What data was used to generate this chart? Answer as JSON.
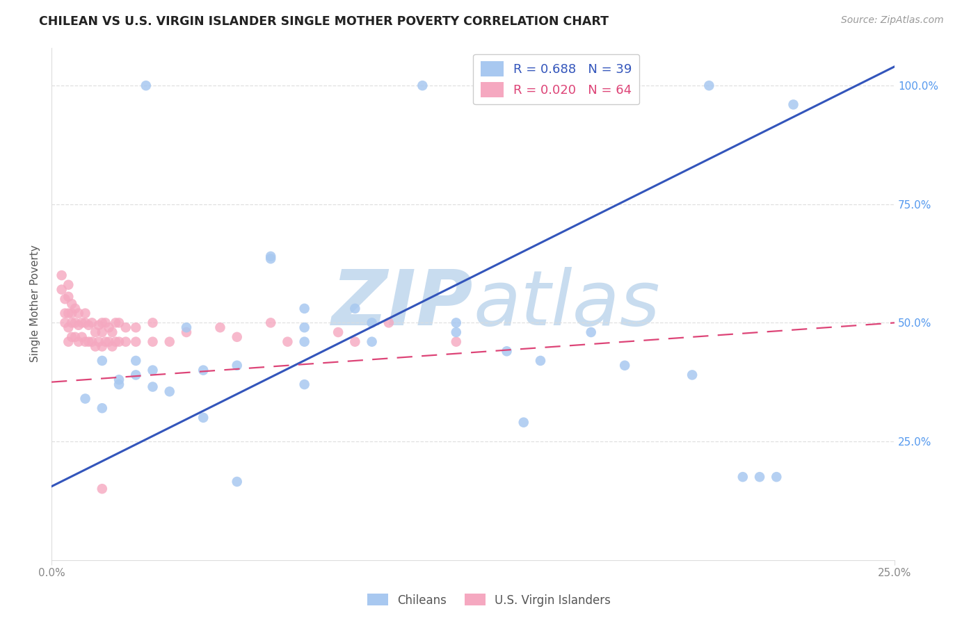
{
  "title": "CHILEAN VS U.S. VIRGIN ISLANDER SINGLE MOTHER POVERTY CORRELATION CHART",
  "source": "Source: ZipAtlas.com",
  "ylabel": "Single Mother Poverty",
  "xlim": [
    0.0,
    0.25
  ],
  "ylim": [
    0.0,
    1.08
  ],
  "ytick_vals": [
    0.25,
    0.5,
    0.75,
    1.0
  ],
  "xtick_vals": [
    0.0,
    0.25
  ],
  "legend_label_chileans": "Chileans",
  "legend_label_vi": "U.S. Virgin Islanders",
  "blue_color": "#A8C8F0",
  "pink_color": "#F5A8C0",
  "blue_line_color": "#3355BB",
  "pink_line_color": "#DD4477",
  "watermark_zip": "ZIP",
  "watermark_atlas": "atlas",
  "watermark_color": "#C8DCEF",
  "title_color": "#222222",
  "source_color": "#999999",
  "tick_color_right": "#5599EE",
  "tick_color_bottom": "#888888",
  "grid_color": "#DDDDDD",
  "blue_line_x": [
    0.0,
    0.25
  ],
  "blue_line_y": [
    0.155,
    1.04
  ],
  "pink_line_x": [
    0.0,
    0.25
  ],
  "pink_line_y": [
    0.375,
    0.5
  ],
  "chilean_x": [
    0.028,
    0.11,
    0.195,
    0.065,
    0.09,
    0.075,
    0.095,
    0.12,
    0.04,
    0.075,
    0.12,
    0.16,
    0.095,
    0.075,
    0.135,
    0.17,
    0.19,
    0.145,
    0.075,
    0.045,
    0.055,
    0.025,
    0.03,
    0.015,
    0.025,
    0.02,
    0.02,
    0.03,
    0.035,
    0.01,
    0.015,
    0.045,
    0.055,
    0.14,
    0.22,
    0.215,
    0.21,
    0.205,
    0.065
  ],
  "chilean_y": [
    1.0,
    1.0,
    1.0,
    0.64,
    0.53,
    0.53,
    0.5,
    0.5,
    0.49,
    0.49,
    0.48,
    0.48,
    0.46,
    0.46,
    0.44,
    0.41,
    0.39,
    0.42,
    0.37,
    0.4,
    0.41,
    0.42,
    0.4,
    0.42,
    0.39,
    0.38,
    0.37,
    0.365,
    0.355,
    0.34,
    0.32,
    0.3,
    0.165,
    0.29,
    0.96,
    0.175,
    0.175,
    0.175,
    0.635
  ],
  "vi_x": [
    0.003,
    0.003,
    0.004,
    0.004,
    0.004,
    0.005,
    0.005,
    0.005,
    0.005,
    0.005,
    0.006,
    0.006,
    0.006,
    0.006,
    0.007,
    0.007,
    0.007,
    0.008,
    0.008,
    0.008,
    0.009,
    0.009,
    0.01,
    0.01,
    0.01,
    0.011,
    0.011,
    0.012,
    0.012,
    0.013,
    0.013,
    0.014,
    0.014,
    0.015,
    0.015,
    0.015,
    0.016,
    0.016,
    0.017,
    0.017,
    0.018,
    0.018,
    0.019,
    0.019,
    0.02,
    0.02,
    0.022,
    0.022,
    0.025,
    0.025,
    0.03,
    0.03,
    0.035,
    0.04,
    0.05,
    0.055,
    0.065,
    0.07,
    0.085,
    0.09,
    0.1,
    0.12,
    0.015
  ],
  "vi_y": [
    0.6,
    0.57,
    0.55,
    0.52,
    0.5,
    0.58,
    0.555,
    0.52,
    0.49,
    0.46,
    0.54,
    0.52,
    0.5,
    0.47,
    0.53,
    0.5,
    0.47,
    0.52,
    0.495,
    0.46,
    0.5,
    0.47,
    0.52,
    0.5,
    0.46,
    0.495,
    0.46,
    0.5,
    0.46,
    0.48,
    0.45,
    0.495,
    0.46,
    0.5,
    0.48,
    0.45,
    0.5,
    0.46,
    0.49,
    0.46,
    0.48,
    0.45,
    0.5,
    0.46,
    0.5,
    0.46,
    0.49,
    0.46,
    0.49,
    0.46,
    0.5,
    0.46,
    0.46,
    0.48,
    0.49,
    0.47,
    0.5,
    0.46,
    0.48,
    0.46,
    0.5,
    0.46,
    0.15
  ]
}
